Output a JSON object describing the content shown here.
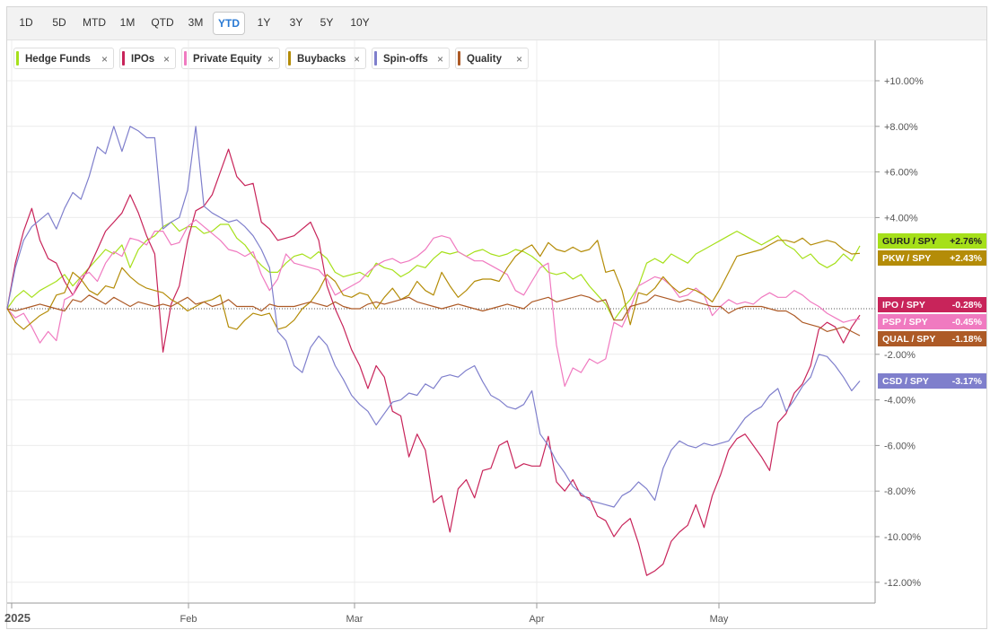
{
  "toolbar": {
    "ranges": [
      "1D",
      "5D",
      "MTD",
      "1M",
      "QTD",
      "3M",
      "YTD",
      "1Y",
      "3Y",
      "5Y",
      "10Y"
    ],
    "active": "YTD"
  },
  "legend": {
    "close_glyph": "×",
    "items": [
      {
        "label": "Hedge Funds",
        "color": "#a6e01a"
      },
      {
        "label": "IPOs",
        "color": "#c8245a"
      },
      {
        "label": "Private Equity",
        "color": "#f07ac0"
      },
      {
        "label": "Buybacks",
        "color": "#b48c08"
      },
      {
        "label": "Spin-offs",
        "color": "#7f7fcc"
      },
      {
        "label": "Quality",
        "color": "#ad5a26"
      }
    ]
  },
  "chart_data": {
    "type": "line",
    "x_tick_labels": [
      "2025",
      "Feb",
      "Mar",
      "Apr",
      "May"
    ],
    "y_tick_labels": [
      "+10.00%",
      "+8.00%",
      "+6.00%",
      "+4.00%",
      "-2.00%",
      "-4.00%",
      "-6.00%",
      "-8.00%",
      "-10.00%",
      "-12.00%"
    ],
    "y_ticks": [
      10,
      8,
      6,
      4,
      -2,
      -4,
      -6,
      -8,
      -10,
      -12
    ],
    "ylim": [
      -12.4,
      11.7
    ],
    "baseline": 0,
    "grid": true,
    "legend_position": "top-left",
    "series": [
      {
        "name": "Hedge Funds",
        "color": "#a6e01a",
        "end_label": "GURU / SPY",
        "end_value": "+2.76%",
        "values": [
          0,
          0.5,
          0.8,
          0.5,
          0.8,
          1.0,
          1.2,
          1.5,
          1.0,
          1.4,
          1.8,
          2.2,
          2.6,
          2.4,
          2.8,
          1.8,
          2.6,
          3.0,
          3.2,
          3.6,
          3.8,
          3.4,
          3.6,
          3.6,
          3.3,
          3.4,
          3.7,
          3.7,
          3.1,
          2.8,
          2.3,
          1.9,
          1.6,
          1.6,
          2.0,
          2.3,
          2.4,
          2.2,
          2.5,
          2.2,
          1.6,
          1.4,
          1.5,
          1.6,
          1.4,
          2.0,
          1.8,
          1.7,
          1.4,
          1.6,
          1.9,
          1.8,
          2.2,
          2.5,
          2.4,
          2.5,
          2.3,
          2.5,
          2.6,
          2.4,
          2.3,
          2.4,
          2.6,
          2.5,
          2.3,
          2.0,
          1.6,
          1.5,
          1.6,
          1.3,
          1.5,
          1.0,
          0.6,
          0.2,
          -0.5,
          0,
          0.4,
          1.0,
          2.0,
          2.2,
          2.0,
          2.4,
          2.2,
          2.0,
          2.4,
          2.6,
          2.8,
          3.0,
          3.2,
          3.4,
          3.2,
          3.0,
          2.8,
          3.0,
          3.2,
          2.8,
          2.6,
          2.2,
          2.4,
          2.0,
          1.8,
          2.0,
          2.4,
          2.1,
          2.76
        ]
      },
      {
        "name": "IPOs",
        "color": "#c8245a",
        "end_label": "IPO / SPY",
        "end_value": "-0.28%",
        "values": [
          0,
          2.0,
          3.4,
          4.4,
          3.0,
          2.2,
          2.0,
          1.2,
          0.6,
          1.2,
          1.8,
          2.6,
          3.4,
          3.8,
          4.2,
          5.0,
          4.2,
          3.2,
          2.4,
          -1.9,
          0.2,
          1.0,
          3.0,
          4.3,
          4.5,
          5.0,
          6.0,
          7.0,
          5.8,
          5.4,
          5.5,
          3.8,
          3.5,
          3.0,
          3.1,
          3.2,
          3.5,
          3.8,
          3.0,
          1.0,
          0,
          -0.8,
          -1.8,
          -2.5,
          -3.5,
          -2.5,
          -3.0,
          -4.5,
          -4.7,
          -6.5,
          -5.5,
          -6.2,
          -8.5,
          -8.2,
          -9.8,
          -7.9,
          -7.5,
          -8.3,
          -7.1,
          -7.0,
          -6.0,
          -5.8,
          -7.0,
          -6.8,
          -6.9,
          -6.9,
          -5.6,
          -7.6,
          -8.0,
          -7.5,
          -8.2,
          -8.3,
          -9.1,
          -9.3,
          -10.0,
          -9.5,
          -9.2,
          -10.3,
          -11.7,
          -11.5,
          -11.2,
          -10.2,
          -9.8,
          -9.5,
          -8.6,
          -9.6,
          -8.2,
          -7.3,
          -6.2,
          -5.7,
          -5.5,
          -6.0,
          -6.5,
          -7.1,
          -5.0,
          -4.6,
          -3.7,
          -3.3,
          -2.5,
          -0.9,
          -0.6,
          -0.8,
          -1.5,
          -0.8,
          -0.28
        ]
      },
      {
        "name": "Private Equity",
        "color": "#f07ac0",
        "end_label": "PSP / SPY",
        "end_value": "-0.45%",
        "values": [
          0,
          -0.4,
          -0.2,
          -0.8,
          -1.5,
          -1.0,
          -1.4,
          0.4,
          0.6,
          1.4,
          1.6,
          1.2,
          2.0,
          2.5,
          2.3,
          3.1,
          3.0,
          2.8,
          3.4,
          3.4,
          2.8,
          2.9,
          3.6,
          3.9,
          3.6,
          3.3,
          3.0,
          2.6,
          2.5,
          2.3,
          2.5,
          1.5,
          0.8,
          1.3,
          2.4,
          2.0,
          1.9,
          1.8,
          1.7,
          1.3,
          0.6,
          0.8,
          1.0,
          1.2,
          1.6,
          1.9,
          2.1,
          2.2,
          2.0,
          2.1,
          2.3,
          2.6,
          3.1,
          3.2,
          3.1,
          2.5,
          2.3,
          2.1,
          2.1,
          1.9,
          1.7,
          1.5,
          0.8,
          0.6,
          1.2,
          1.8,
          2.0,
          -1.6,
          -3.4,
          -2.6,
          -2.8,
          -2.2,
          -2.4,
          -2.2,
          -0.6,
          -0.8,
          0,
          1.0,
          1.2,
          1.4,
          1.3,
          1.0,
          0.5,
          0.6,
          0.9,
          0.6,
          -0.3,
          0.1,
          0.4,
          0.2,
          0.3,
          0.2,
          0.5,
          0.7,
          0.5,
          0.5,
          0.8,
          0.6,
          0.3,
          0.1,
          -0.2,
          -0.4,
          -0.6,
          -0.5,
          -0.45
        ]
      },
      {
        "name": "Buybacks",
        "color": "#b48c08",
        "end_label": "PKW / SPY",
        "end_value": "+2.43%",
        "values": [
          0,
          -0.6,
          -0.9,
          -0.6,
          -0.3,
          -0.1,
          0.6,
          0.7,
          1.6,
          1.3,
          0.8,
          0.6,
          1.0,
          0.9,
          1.8,
          1.4,
          1.1,
          0.9,
          0.8,
          0.7,
          0.4,
          0.2,
          -0.1,
          0.1,
          0.3,
          0.4,
          0.6,
          -0.8,
          -0.9,
          -0.5,
          -0.2,
          -0.3,
          -0.2,
          -0.9,
          -0.8,
          -0.5,
          0,
          0.3,
          0.8,
          1.5,
          1.2,
          0.6,
          0.5,
          0.7,
          0.6,
          0,
          0.5,
          0.9,
          0.4,
          0.6,
          1.2,
          0.8,
          0.6,
          1.6,
          1.0,
          0.5,
          0.8,
          1.2,
          1.3,
          1.3,
          1.2,
          1.8,
          2.3,
          2.6,
          2.8,
          2.3,
          2.9,
          2.6,
          2.5,
          2.7,
          2.5,
          2.6,
          3.0,
          1.6,
          1.7,
          0.8,
          -0.7,
          0.7,
          0.6,
          0.9,
          1.4,
          1.0,
          0.7,
          0.9,
          0.8,
          0.6,
          0.3,
          0.9,
          1.6,
          2.3,
          2.4,
          2.5,
          2.6,
          2.8,
          3.0,
          3.0,
          2.9,
          3.1,
          2.8,
          2.9,
          3.0,
          2.9,
          2.6,
          2.4,
          2.43
        ]
      },
      {
        "name": "Spin-offs",
        "color": "#7f7fcc",
        "end_label": "CSD / SPY",
        "end_value": "-3.17%",
        "values": [
          0,
          1.8,
          3.0,
          3.6,
          3.9,
          4.2,
          3.5,
          4.4,
          5.1,
          4.8,
          5.8,
          7.1,
          6.8,
          8.0,
          6.9,
          8.0,
          7.8,
          7.5,
          7.5,
          3.5,
          3.8,
          4.0,
          5.2,
          8.0,
          4.5,
          4.2,
          4.0,
          3.8,
          3.9,
          3.6,
          3.2,
          2.6,
          1.8,
          -1.0,
          -1.4,
          -2.5,
          -2.8,
          -1.7,
          -1.2,
          -1.6,
          -2.5,
          -3.1,
          -3.8,
          -4.2,
          -4.5,
          -5.1,
          -4.6,
          -4.1,
          -4.0,
          -3.7,
          -3.8,
          -3.3,
          -3.5,
          -3.0,
          -2.9,
          -3.0,
          -2.7,
          -2.5,
          -3.2,
          -3.8,
          -4.0,
          -4.3,
          -4.4,
          -4.2,
          -3.6,
          -5.5,
          -6.0,
          -6.7,
          -7.2,
          -7.8,
          -8.1,
          -8.4,
          -8.5,
          -8.6,
          -8.7,
          -8.2,
          -8.0,
          -7.6,
          -7.9,
          -8.4,
          -7.0,
          -6.2,
          -5.8,
          -6.0,
          -6.1,
          -5.9,
          -6.0,
          -5.9,
          -5.8,
          -5.3,
          -4.8,
          -4.5,
          -4.3,
          -3.8,
          -3.5,
          -4.5,
          -4.0,
          -3.4,
          -3.0,
          -2.0,
          -2.1,
          -2.5,
          -3.0,
          -3.6,
          -3.17
        ]
      },
      {
        "name": "Quality",
        "color": "#ad5a26",
        "end_label": "QUAL / SPY",
        "end_value": "-1.18%",
        "values": [
          0,
          -0.1,
          0,
          0.1,
          0.2,
          0.1,
          0,
          -0.1,
          0.4,
          0.3,
          0.6,
          0.4,
          0.2,
          0.5,
          0.3,
          0.1,
          0.3,
          0.2,
          0.1,
          0.2,
          0.1,
          0.3,
          0.5,
          0.2,
          0.3,
          0.1,
          0.2,
          0.4,
          0.1,
          0.1,
          0.1,
          -0.1,
          0.2,
          0.1,
          0.1,
          0.1,
          0.2,
          0.3,
          0.2,
          0.1,
          0.3,
          0.1,
          0.0,
          0.0,
          0.2,
          0.3,
          0.2,
          0.3,
          0.4,
          0.5,
          0.3,
          0.2,
          0.1,
          0.0,
          0.1,
          0.2,
          0.1,
          0.0,
          -0.1,
          0.0,
          0.1,
          0.2,
          0.1,
          0.0,
          0.3,
          0.4,
          0.5,
          0.3,
          0.4,
          0.5,
          0.6,
          0.5,
          0.3,
          0.4,
          -0.5,
          -0.5,
          0.1,
          0.2,
          0.3,
          0.6,
          0.5,
          0.4,
          0.3,
          0.4,
          0.3,
          0.2,
          0.1,
          0.1,
          -0.2,
          0.0,
          0.1,
          0.1,
          0.1,
          0.0,
          -0.1,
          -0.1,
          -0.3,
          -0.6,
          -0.7,
          -0.8,
          -1.0,
          -0.9,
          -0.8,
          -1.0,
          -1.18
        ]
      }
    ]
  }
}
